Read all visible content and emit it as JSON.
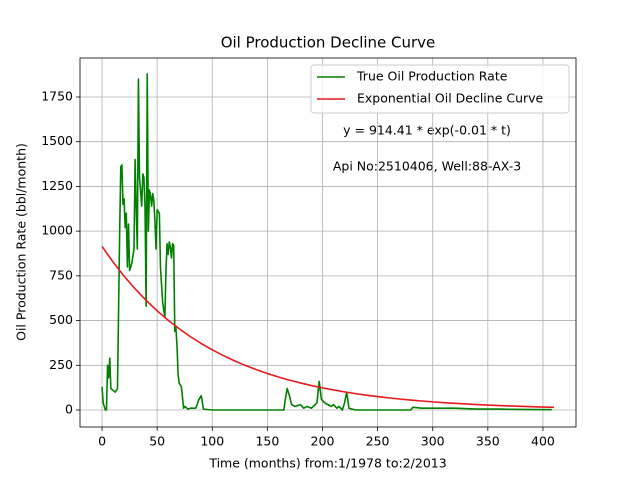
{
  "chart_data": {
    "type": "line",
    "title": "Oil Production Decline Curve",
    "xlabel": "Time (months) from:1/1978 to:2/2013",
    "ylabel": "Oil Production Rate (bbl/month)",
    "annotations": [
      "y = 914.41 * exp(-0.01 * t)",
      "Api No:2510406, Well:88-AX-3"
    ],
    "xlim": [
      -20,
      430
    ],
    "ylim": [
      -95,
      1968
    ],
    "xticks": [
      0,
      50,
      100,
      150,
      200,
      250,
      300,
      350,
      400
    ],
    "yticks": [
      0,
      250,
      500,
      750,
      1000,
      1250,
      1500,
      1750
    ],
    "grid": true,
    "legend": "upper right",
    "series": [
      {
        "name": "True Oil Production Rate",
        "color": "#008000",
        "x": [
          0,
          1,
          3,
          4,
          5,
          6,
          7,
          8,
          10,
          12,
          14,
          16,
          17,
          18,
          19,
          20,
          21,
          22,
          23,
          24,
          25,
          27,
          29,
          30,
          31,
          32,
          33,
          34,
          36,
          37,
          38,
          39,
          40,
          41,
          42,
          43,
          44,
          45,
          46,
          47,
          48,
          49,
          50,
          52,
          53,
          55,
          57,
          58,
          59,
          60,
          61,
          62,
          63,
          64,
          65,
          66,
          67,
          68,
          69,
          70,
          72,
          74,
          75,
          78,
          80,
          85,
          88,
          90,
          92,
          100,
          165,
          166,
          168,
          170,
          172,
          175,
          180,
          183,
          186,
          190,
          195,
          197,
          199,
          202,
          205,
          208,
          210,
          213,
          215,
          218,
          220,
          222,
          224,
          230,
          280,
          282,
          290,
          300,
          320,
          340,
          360,
          380,
          408
        ],
        "values": [
          130,
          40,
          0,
          0,
          250,
          180,
          290,
          120,
          110,
          100,
          120,
          1000,
          1360,
          1370,
          1150,
          1180,
          1020,
          1100,
          800,
          1040,
          780,
          820,
          900,
          1400,
          1130,
          900,
          1850,
          1300,
          1140,
          1320,
          1300,
          1130,
          580,
          1880,
          1000,
          1230,
          1200,
          1140,
          1210,
          1170,
          1050,
          900,
          1120,
          1100,
          800,
          600,
          520,
          780,
          930,
          870,
          940,
          910,
          850,
          930,
          920,
          440,
          460,
          360,
          200,
          150,
          130,
          10,
          20,
          5,
          10,
          10,
          60,
          80,
          5,
          0,
          0,
          50,
          120,
          80,
          30,
          20,
          30,
          10,
          20,
          10,
          40,
          160,
          60,
          40,
          30,
          20,
          30,
          10,
          20,
          0,
          40,
          100,
          10,
          0,
          0,
          15,
          10,
          10,
          10,
          5,
          5,
          3,
          2
        ]
      },
      {
        "name": "Exponential Oil Decline Curve",
        "color": "#e41a1c",
        "x": [
          0,
          10,
          20,
          30,
          40,
          50,
          60,
          70,
          80,
          90,
          100,
          110,
          120,
          130,
          140,
          150,
          160,
          170,
          180,
          190,
          200,
          210,
          220,
          230,
          240,
          250,
          260,
          270,
          280,
          290,
          300,
          310,
          320,
          330,
          340,
          350,
          360,
          370,
          380,
          390,
          400,
          410
        ],
        "values": [
          914.4,
          827.4,
          748.7,
          677.4,
          613.0,
          554.6,
          501.8,
          454.1,
          410.9,
          371.8,
          336.4,
          304.4,
          275.4,
          249.2,
          225.5,
          204.0,
          184.6,
          167.1,
          151.2,
          136.8,
          123.8,
          112.0,
          101.3,
          91.7,
          83.0,
          75.1,
          67.9,
          61.5,
          55.6,
          50.3,
          45.5,
          41.2,
          37.3,
          33.7,
          30.5,
          27.6,
          25.0,
          22.6,
          20.4,
          18.5,
          16.7,
          15.1
        ]
      }
    ]
  }
}
